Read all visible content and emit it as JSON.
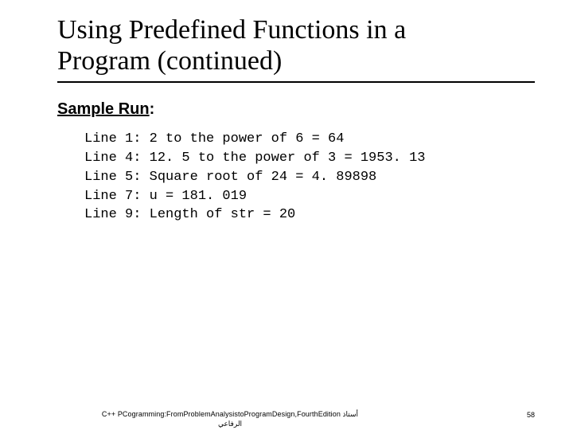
{
  "title_line1": "Using Predefined Functions in a",
  "title_line2": "Program (continued)",
  "subhead_prefix": "Sample Run",
  "subhead_colon": ":",
  "code": {
    "l1": "Line 1: 2 to the power of 6 = 64",
    "l2": "Line 4: 12. 5 to the power of 3 = 1953. 13",
    "l3": "Line 5: Square root of 24 = 4. 89898",
    "l4": "Line 7: u = 181. 019",
    "l5": "Line 9: Length of str = 20"
  },
  "footer_main": "C++ PCogramming:FromProblemAnalysistoProgramDesign,FourthEdition أستاذ",
  "footer_sub": "الرفاعي",
  "page_number": "58"
}
